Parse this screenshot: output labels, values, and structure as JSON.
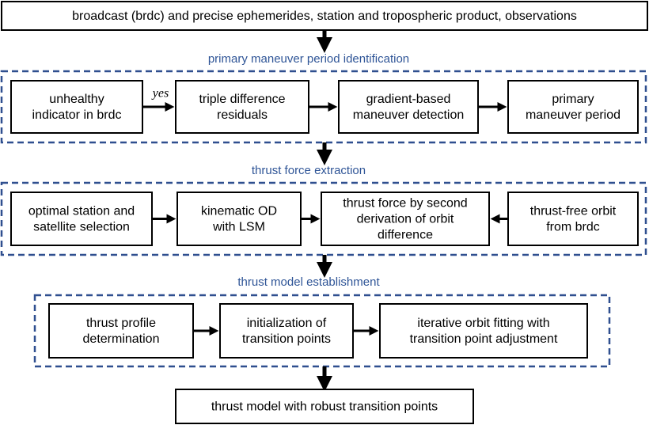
{
  "header": {
    "lines": [
      "broadcast (brdc) and precise ephemerides, station and tropospheric product, observations"
    ]
  },
  "sections": [
    {
      "title": "primary maneuver period identification",
      "nodes": [
        {
          "lines": [
            "unhealthy",
            "indicator in brdc"
          ]
        },
        {
          "lines": [
            "triple difference",
            "residuals"
          ]
        },
        {
          "lines": [
            "gradient-based",
            "maneuver detection"
          ]
        },
        {
          "lines": [
            "primary",
            "maneuver period"
          ]
        }
      ],
      "edge_label": "yes"
    },
    {
      "title": "thrust force extraction",
      "nodes": [
        {
          "lines": [
            "optimal station and",
            "satellite selection"
          ]
        },
        {
          "lines": [
            "kinematic OD",
            "with LSM"
          ]
        },
        {
          "lines": [
            "thrust force by second",
            "derivation of orbit",
            "difference"
          ]
        },
        {
          "lines": [
            "thrust-free orbit",
            "from brdc"
          ]
        }
      ]
    },
    {
      "title": "thrust model establishment",
      "nodes": [
        {
          "lines": [
            "thrust profile",
            "determination"
          ]
        },
        {
          "lines": [
            "initialization of",
            "transition points"
          ]
        },
        {
          "lines": [
            "iterative orbit fitting with",
            "transition point adjustment"
          ]
        }
      ]
    }
  ],
  "footer": {
    "lines": [
      "thrust model with robust transition points"
    ]
  }
}
